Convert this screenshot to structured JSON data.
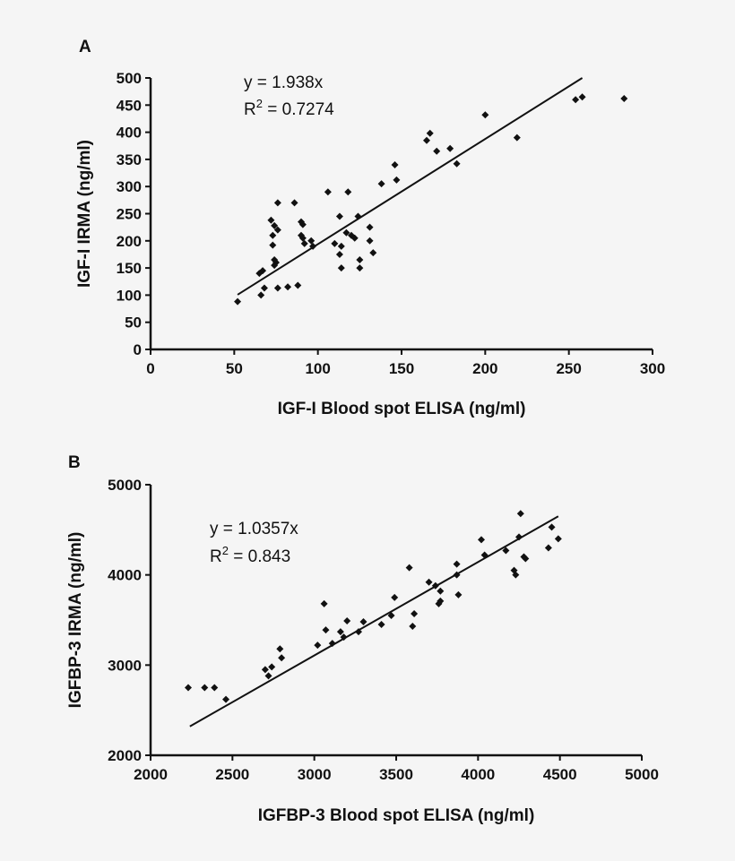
{
  "chart_data": [
    {
      "type": "scatter",
      "panel": "A",
      "xlabel": "IGF-I Blood spot ELISA (ng/ml)",
      "ylabel": "IGF-I IRMA (ng/ml)",
      "xlim": [
        0,
        300
      ],
      "ylim": [
        0,
        500
      ],
      "xticks": [
        "0",
        "50",
        "100",
        "150",
        "200",
        "250",
        "300"
      ],
      "yticks": [
        "0",
        "50",
        "100",
        "150",
        "200",
        "250",
        "300",
        "350",
        "400",
        "450",
        "500"
      ],
      "equation": "y = 1.938x",
      "r2_prefix": "R",
      "r2_sup": "2",
      "r2_value": " = 0.7274",
      "fit": {
        "slope": 1.938,
        "x_range": [
          52,
          258
        ]
      },
      "points": [
        [
          52,
          88
        ],
        [
          66,
          100
        ],
        [
          68,
          113
        ],
        [
          65,
          140
        ],
        [
          67,
          145
        ],
        [
          72,
          238
        ],
        [
          74,
          228
        ],
        [
          73,
          210
        ],
        [
          73,
          192
        ],
        [
          74,
          165
        ],
        [
          75,
          160
        ],
        [
          74,
          155
        ],
        [
          76,
          270
        ],
        [
          76,
          220
        ],
        [
          76,
          113
        ],
        [
          82,
          115
        ],
        [
          86,
          270
        ],
        [
          88,
          118
        ],
        [
          90,
          235
        ],
        [
          91,
          230
        ],
        [
          90,
          210
        ],
        [
          91,
          205
        ],
        [
          92,
          195
        ],
        [
          96,
          200
        ],
        [
          97,
          190
        ],
        [
          106,
          290
        ],
        [
          110,
          195
        ],
        [
          113,
          245
        ],
        [
          114,
          190
        ],
        [
          113,
          175
        ],
        [
          114,
          150
        ],
        [
          118,
          290
        ],
        [
          117,
          215
        ],
        [
          120,
          210
        ],
        [
          122,
          205
        ],
        [
          124,
          245
        ],
        [
          125,
          165
        ],
        [
          125,
          150
        ],
        [
          131,
          225
        ],
        [
          131,
          200
        ],
        [
          133,
          178
        ],
        [
          138,
          305
        ],
        [
          146,
          340
        ],
        [
          147,
          312
        ],
        [
          165,
          385
        ],
        [
          167,
          398
        ],
        [
          171,
          365
        ],
        [
          179,
          370
        ],
        [
          183,
          342
        ],
        [
          200,
          432
        ],
        [
          219,
          390
        ],
        [
          254,
          460
        ],
        [
          258,
          465
        ],
        [
          283,
          462
        ]
      ]
    },
    {
      "type": "scatter",
      "panel": "B",
      "xlabel": "IGFBP-3 Blood spot ELISA (ng/ml)",
      "ylabel": "IGFBP-3 IRMA (ng/ml)",
      "xlim": [
        2000,
        5000
      ],
      "ylim": [
        2000,
        5000
      ],
      "xticks": [
        "2000",
        "2500",
        "3000",
        "3500",
        "4000",
        "4500",
        "5000"
      ],
      "yticks": [
        "2000",
        "3000",
        "4000",
        "5000"
      ],
      "equation": "y = 1.0357x",
      "r2_prefix": "R",
      "r2_sup": "2",
      "r2_value": " = 0.843",
      "fit": {
        "slope": 1.0357,
        "x_range": [
          2240,
          4490
        ]
      },
      "points": [
        [
          2230,
          2750
        ],
        [
          2330,
          2750
        ],
        [
          2390,
          2750
        ],
        [
          2460,
          2620
        ],
        [
          2700,
          2950
        ],
        [
          2720,
          2880
        ],
        [
          2740,
          2980
        ],
        [
          2790,
          3180
        ],
        [
          2800,
          3080
        ],
        [
          3020,
          3220
        ],
        [
          3060,
          3680
        ],
        [
          3070,
          3390
        ],
        [
          3110,
          3240
        ],
        [
          3160,
          3370
        ],
        [
          3180,
          3310
        ],
        [
          3200,
          3490
        ],
        [
          3270,
          3370
        ],
        [
          3300,
          3480
        ],
        [
          3410,
          3450
        ],
        [
          3470,
          3550
        ],
        [
          3490,
          3750
        ],
        [
          3580,
          4080
        ],
        [
          3600,
          3430
        ],
        [
          3610,
          3570
        ],
        [
          3700,
          3920
        ],
        [
          3740,
          3880
        ],
        [
          3760,
          3680
        ],
        [
          3770,
          3710
        ],
        [
          3770,
          3820
        ],
        [
          3870,
          4120
        ],
        [
          3870,
          4000
        ],
        [
          3880,
          3780
        ],
        [
          4020,
          4390
        ],
        [
          4040,
          4220
        ],
        [
          4170,
          4270
        ],
        [
          4220,
          4050
        ],
        [
          4230,
          4000
        ],
        [
          4250,
          4420
        ],
        [
          4260,
          4680
        ],
        [
          4280,
          4200
        ],
        [
          4290,
          4180
        ],
        [
          4430,
          4300
        ],
        [
          4450,
          4530
        ],
        [
          4490,
          4400
        ]
      ]
    }
  ]
}
